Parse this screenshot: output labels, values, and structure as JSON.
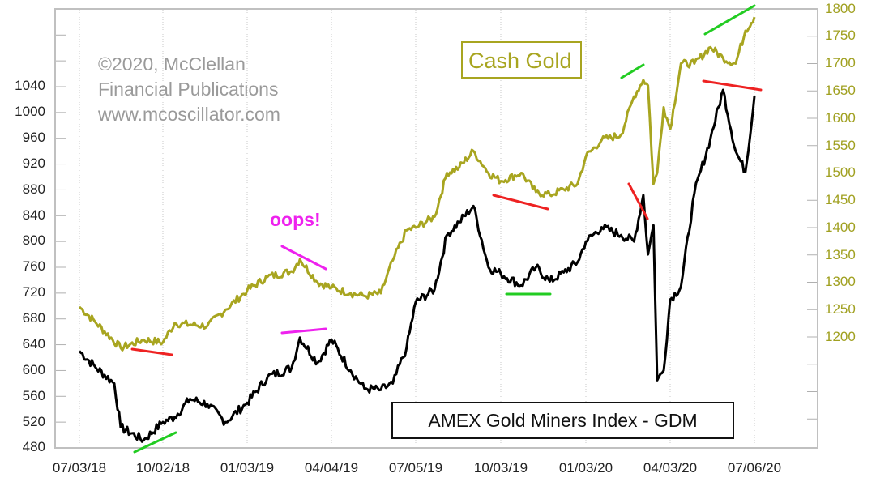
{
  "chart_data": {
    "type": "line",
    "title": "",
    "xlabel": "",
    "ylabel_left": "AMEX Gold Miners Index - GDM",
    "ylabel_right": "Cash Gold",
    "x_ticks": [
      "07/03/18",
      "10/02/18",
      "01/03/19",
      "04/04/19",
      "07/05/19",
      "10/03/19",
      "01/03/20",
      "04/03/20",
      "07/06/20"
    ],
    "y_left_ticks": [
      480,
      520,
      560,
      600,
      640,
      680,
      720,
      760,
      800,
      840,
      880,
      920,
      960,
      1000,
      1040
    ],
    "y_right_ticks": [
      1200,
      1250,
      1300,
      1350,
      1400,
      1450,
      1500,
      1550,
      1600,
      1650,
      1700,
      1750,
      1800
    ],
    "ylim_left": [
      480,
      1160
    ],
    "ylim_right": [
      1000,
      1800
    ],
    "grid": "vertical dotted at x ticks",
    "legend_position": "inline text boxes",
    "series": [
      {
        "name": "AMEX Gold Miners Index - GDM",
        "axis": "left",
        "color": "#000000",
        "x": [
          "07/03/18",
          "07/20/18",
          "08/10/18",
          "08/17/18",
          "09/11/18",
          "10/02/18",
          "10/15/18",
          "11/01/18",
          "11/20/18",
          "12/10/18",
          "01/03/19",
          "01/25/19",
          "02/20/19",
          "03/01/19",
          "03/20/19",
          "04/04/19",
          "04/25/19",
          "05/10/19",
          "05/28/19",
          "06/10/19",
          "06/25/19",
          "07/05/19",
          "07/25/19",
          "08/07/19",
          "08/20/19",
          "09/04/19",
          "09/20/19",
          "10/03/19",
          "10/25/19",
          "11/10/19",
          "11/25/19",
          "12/10/19",
          "12/25/19",
          "01/03/20",
          "01/20/20",
          "02/10/20",
          "02/24/20",
          "03/05/20",
          "03/10/20",
          "03/16/20",
          "03/20/20",
          "03/27/20",
          "04/03/20",
          "04/15/20",
          "04/30/20",
          "05/18/20",
          "06/01/20",
          "06/15/20",
          "06/26/20",
          "07/06/20"
        ],
        "values": [
          630,
          606,
          580,
          512,
          492,
          520,
          528,
          556,
          548,
          520,
          550,
          590,
          604,
          651,
          612,
          648,
          600,
          572,
          570,
          580,
          635,
          706,
          726,
          810,
          830,
          855,
          760,
          750,
          732,
          760,
          738,
          752,
          768,
          800,
          822,
          810,
          800,
          872,
          780,
          825,
          585,
          600,
          710,
          730,
          875,
          960,
          1035,
          940,
          908,
          1025
        ]
      },
      {
        "name": "Cash Gold",
        "axis": "right",
        "color": "#a8a520",
        "x": [
          "07/03/18",
          "07/20/18",
          "08/17/18",
          "09/11/18",
          "10/02/18",
          "10/15/18",
          "11/20/18",
          "12/10/18",
          "01/03/19",
          "01/25/19",
          "02/20/19",
          "03/01/19",
          "03/20/19",
          "04/04/19",
          "04/25/19",
          "05/10/19",
          "05/28/19",
          "06/10/19",
          "06/25/19",
          "07/05/19",
          "07/25/19",
          "08/07/19",
          "08/20/19",
          "09/04/19",
          "09/20/19",
          "10/03/19",
          "10/25/19",
          "11/10/19",
          "11/25/19",
          "12/10/19",
          "12/25/19",
          "01/03/20",
          "01/20/20",
          "02/10/20",
          "02/24/20",
          "03/05/20",
          "03/10/20",
          "03/16/20",
          "03/20/20",
          "03/27/20",
          "04/03/20",
          "04/15/20",
          "04/30/20",
          "05/18/20",
          "06/01/20",
          "06/15/20",
          "06/26/20",
          "07/06/20"
        ],
        "values": [
          1255,
          1228,
          1180,
          1195,
          1190,
          1225,
          1220,
          1250,
          1285,
          1310,
          1320,
          1342,
          1300,
          1290,
          1280,
          1275,
          1280,
          1340,
          1395,
          1400,
          1420,
          1500,
          1510,
          1540,
          1500,
          1485,
          1500,
          1465,
          1460,
          1470,
          1480,
          1530,
          1560,
          1570,
          1640,
          1670,
          1660,
          1480,
          1500,
          1620,
          1580,
          1700,
          1700,
          1730,
          1710,
          1700,
          1760,
          1785
        ]
      }
    ],
    "annotations": [
      {
        "text": "oops!",
        "color": "#ee22ee"
      },
      {
        "type": "trendline",
        "color": "#ee22ee",
        "series": "Cash Gold",
        "desc": "falling line over Mar-Apr 2019 gold highs"
      },
      {
        "type": "trendline",
        "color": "#ee22ee",
        "series": "GDM",
        "desc": "rising line over Mar-Apr 2019 GDM highs"
      },
      {
        "type": "trendline",
        "color": "#ee2222",
        "series": "Cash Gold",
        "desc": "falling line under Aug-Oct 2018 gold lows"
      },
      {
        "type": "trendline",
        "color": "#22cc22",
        "series": "GDM",
        "desc": "rising line under Sep-Oct 2018 GDM lows"
      },
      {
        "type": "trendline",
        "color": "#ee2222",
        "series": "Cash Gold",
        "desc": "falling line Oct-Nov 2019"
      },
      {
        "type": "trendline",
        "color": "#22cc22",
        "series": "GDM",
        "desc": "flat line under Oct-Nov 2019 GDM lows"
      },
      {
        "type": "trendline",
        "color": "#22cc22",
        "series": "Cash Gold",
        "desc": "rising line Feb 2020 gold highs"
      },
      {
        "type": "trendline",
        "color": "#ee2222",
        "series": "GDM",
        "desc": "falling line Feb 2020 GDM highs"
      },
      {
        "type": "trendline",
        "color": "#22cc22",
        "series": "Cash Gold",
        "desc": "rising line May-Jul 2020 gold highs"
      },
      {
        "type": "trendline",
        "color": "#ee2222",
        "series": "GDM",
        "desc": "falling line May-Jul 2020 GDM highs"
      }
    ]
  },
  "labels": {
    "watermark_line1": "©2020, McClellan",
    "watermark_line2": "Financial Publications",
    "watermark_line3": "www.mcoscillator.com",
    "legend_gold": "Cash Gold",
    "legend_gdm": "AMEX Gold Miners Index - GDM",
    "oops": "oops!"
  },
  "axes": {
    "left": [
      "1040",
      "1000",
      "960",
      "920",
      "880",
      "840",
      "800",
      "760",
      "720",
      "680",
      "640",
      "600",
      "560",
      "520",
      "480"
    ],
    "right": [
      "1800",
      "1750",
      "1700",
      "1650",
      "1600",
      "1550",
      "1500",
      "1450",
      "1400",
      "1350",
      "1300",
      "1250",
      "1200"
    ],
    "x": [
      "07/03/18",
      "10/02/18",
      "01/03/19",
      "04/04/19",
      "07/05/19",
      "10/03/19",
      "01/03/20",
      "04/03/20",
      "07/06/20"
    ]
  },
  "colors": {
    "gold": "#a8a520",
    "gdm": "#000000",
    "bearish": "#ee2222",
    "bullish": "#22cc22",
    "oops": "#ee22ee",
    "watermark": "#9a9a9a",
    "frame": "#c0c0c0"
  }
}
